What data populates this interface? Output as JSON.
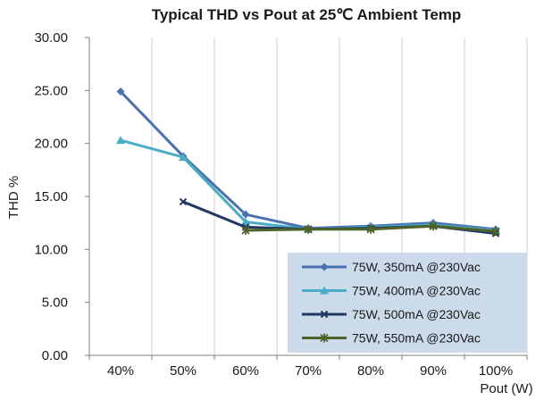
{
  "chart_data": {
    "type": "line",
    "title": "Typical THD vs Pout at 25℃ Ambient Temp",
    "xlabel": "Pout (W)",
    "ylabel": "THD %",
    "categories": [
      "40%",
      "50%",
      "60%",
      "70%",
      "80%",
      "90%",
      "100%"
    ],
    "ylim": [
      0,
      30
    ],
    "yticks": [
      "0.00",
      "5.00",
      "10.00",
      "15.00",
      "20.00",
      "25.00",
      "30.00"
    ],
    "grid": "vertical",
    "legend_position": "bottom-right",
    "series": [
      {
        "name": "75W, 350mA @230Vac",
        "color": "#4a72b0",
        "marker": "diamond",
        "values": [
          24.9,
          18.8,
          13.3,
          12.0,
          12.2,
          12.5,
          11.9
        ]
      },
      {
        "name": "75W, 400mA @230Vac",
        "color": "#4bacc6",
        "marker": "triangle",
        "values": [
          20.3,
          18.7,
          12.6,
          11.9,
          12.1,
          12.3,
          11.8
        ]
      },
      {
        "name": "75W, 500mA @230Vac",
        "color": "#1f3864",
        "marker": "x",
        "values": [
          null,
          14.5,
          12.1,
          11.9,
          12.0,
          12.2,
          11.5
        ]
      },
      {
        "name": "75W, 550mA @230Vac",
        "color": "#4f6228",
        "marker": "star",
        "values": [
          null,
          null,
          11.8,
          11.9,
          11.9,
          12.2,
          11.7
        ]
      }
    ]
  }
}
